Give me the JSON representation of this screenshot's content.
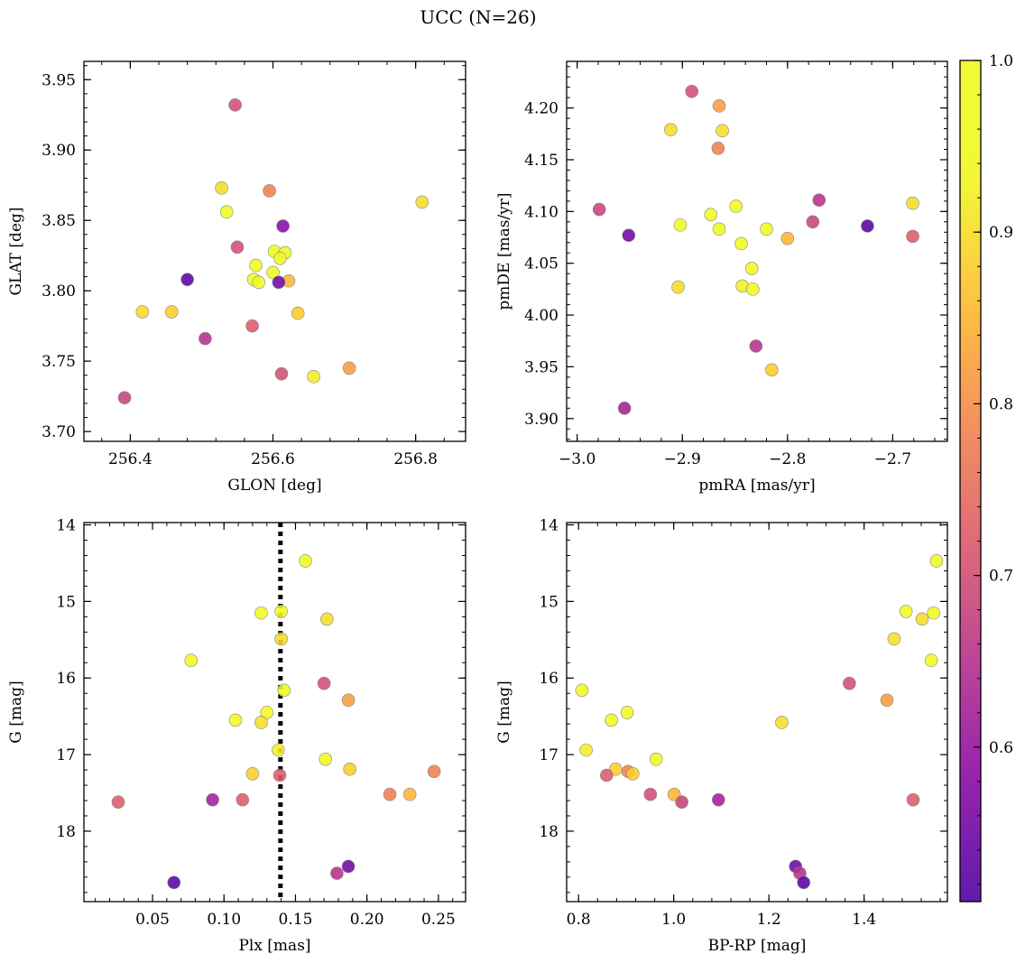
{
  "figure": {
    "title": "UCC (N=26)"
  },
  "colorbar": {
    "colormap": "plasma",
    "range": [
      0.51,
      1.0
    ],
    "ticks": [
      0.6,
      0.7,
      0.8,
      0.9,
      1.0
    ],
    "tick_labels": [
      "0.6",
      "0.7",
      "0.8",
      "0.9",
      "1.0"
    ]
  },
  "chart_data": [
    {
      "type": "scatter",
      "xlabel": "GLON [deg]",
      "ylabel": "GLAT [deg]",
      "xlim": [
        256.335,
        256.87
      ],
      "ylim": [
        3.693,
        3.963
      ],
      "xticks": [
        256.4,
        256.6,
        256.8
      ],
      "xtick_labels": [
        "256.4",
        "256.6",
        "256.8"
      ],
      "yticks": [
        3.7,
        3.75,
        3.8,
        3.85,
        3.9,
        3.95
      ],
      "ytick_labels": [
        "3.70",
        "3.75",
        "3.80",
        "3.85",
        "3.90",
        "3.95"
      ],
      "x_minor_step": 0.04,
      "y_minor_step": 0.01,
      "y_inverted": false,
      "points": [
        {
          "x": 256.547,
          "y": 3.932,
          "p": 0.7
        },
        {
          "x": 256.809,
          "y": 3.863,
          "p": 0.9
        },
        {
          "x": 256.528,
          "y": 3.873,
          "p": 0.9
        },
        {
          "x": 256.595,
          "y": 3.871,
          "p": 0.78
        },
        {
          "x": 256.535,
          "y": 3.856,
          "p": 0.97
        },
        {
          "x": 256.614,
          "y": 3.846,
          "p": 0.58
        },
        {
          "x": 256.55,
          "y": 3.831,
          "p": 0.7
        },
        {
          "x": 256.602,
          "y": 3.828,
          "p": 0.97
        },
        {
          "x": 256.617,
          "y": 3.827,
          "p": 0.97
        },
        {
          "x": 256.61,
          "y": 3.823,
          "p": 0.97
        },
        {
          "x": 256.576,
          "y": 3.818,
          "p": 0.97
        },
        {
          "x": 256.6,
          "y": 3.813,
          "p": 0.97
        },
        {
          "x": 256.573,
          "y": 3.808,
          "p": 0.97
        },
        {
          "x": 256.58,
          "y": 3.806,
          "p": 0.97
        },
        {
          "x": 256.622,
          "y": 3.807,
          "p": 0.85
        },
        {
          "x": 256.608,
          "y": 3.806,
          "p": 0.55
        },
        {
          "x": 256.48,
          "y": 3.808,
          "p": 0.52
        },
        {
          "x": 256.417,
          "y": 3.785,
          "p": 0.9
        },
        {
          "x": 256.458,
          "y": 3.785,
          "p": 0.88
        },
        {
          "x": 256.635,
          "y": 3.784,
          "p": 0.88
        },
        {
          "x": 256.571,
          "y": 3.775,
          "p": 0.72
        },
        {
          "x": 256.505,
          "y": 3.766,
          "p": 0.65
        },
        {
          "x": 256.707,
          "y": 3.745,
          "p": 0.82
        },
        {
          "x": 256.612,
          "y": 3.741,
          "p": 0.7
        },
        {
          "x": 256.657,
          "y": 3.739,
          "p": 0.92
        },
        {
          "x": 256.392,
          "y": 3.724,
          "p": 0.68
        }
      ]
    },
    {
      "type": "scatter",
      "xlabel": "pmRA [mas/yr]",
      "ylabel": "pmDE [mas/yr]",
      "xlim": [
        -3.01,
        -2.648
      ],
      "ylim": [
        3.878,
        4.245
      ],
      "xticks": [
        -3.0,
        -2.9,
        -2.8,
        -2.7
      ],
      "xtick_labels": [
        "−3.0",
        "−2.9",
        "−2.8",
        "−2.7"
      ],
      "yticks": [
        3.9,
        3.95,
        4.0,
        4.05,
        4.1,
        4.15,
        4.2
      ],
      "ytick_labels": [
        "3.90",
        "3.95",
        "4.00",
        "4.05",
        "4.10",
        "4.15",
        "4.20"
      ],
      "x_minor_step": 0.02,
      "y_minor_step": 0.01,
      "y_inverted": false,
      "points": [
        {
          "x": -2.891,
          "y": 4.216,
          "p": 0.7
        },
        {
          "x": -2.865,
          "y": 4.202,
          "p": 0.82
        },
        {
          "x": -2.911,
          "y": 4.179,
          "p": 0.9
        },
        {
          "x": -2.862,
          "y": 4.178,
          "p": 0.9
        },
        {
          "x": -2.866,
          "y": 4.161,
          "p": 0.78
        },
        {
          "x": -2.77,
          "y": 4.111,
          "p": 0.65
        },
        {
          "x": -2.681,
          "y": 4.108,
          "p": 0.9
        },
        {
          "x": -2.849,
          "y": 4.105,
          "p": 0.97
        },
        {
          "x": -2.979,
          "y": 4.102,
          "p": 0.68
        },
        {
          "x": -2.873,
          "y": 4.097,
          "p": 0.97
        },
        {
          "x": -2.776,
          "y": 4.09,
          "p": 0.68
        },
        {
          "x": -2.902,
          "y": 4.087,
          "p": 0.97
        },
        {
          "x": -2.724,
          "y": 4.086,
          "p": 0.52
        },
        {
          "x": -2.865,
          "y": 4.083,
          "p": 0.97
        },
        {
          "x": -2.82,
          "y": 4.083,
          "p": 0.97
        },
        {
          "x": -2.951,
          "y": 4.077,
          "p": 0.55
        },
        {
          "x": -2.681,
          "y": 4.076,
          "p": 0.72
        },
        {
          "x": -2.8,
          "y": 4.074,
          "p": 0.85
        },
        {
          "x": -2.844,
          "y": 4.069,
          "p": 0.97
        },
        {
          "x": -2.834,
          "y": 4.045,
          "p": 0.97
        },
        {
          "x": -2.843,
          "y": 4.028,
          "p": 0.92
        },
        {
          "x": -2.904,
          "y": 4.027,
          "p": 0.9
        },
        {
          "x": -2.833,
          "y": 4.025,
          "p": 0.97
        },
        {
          "x": -2.83,
          "y": 3.97,
          "p": 0.65
        },
        {
          "x": -2.815,
          "y": 3.947,
          "p": 0.88
        },
        {
          "x": -2.955,
          "y": 3.91,
          "p": 0.62
        }
      ]
    },
    {
      "type": "scatter",
      "xlabel": "Plx [mas]",
      "ylabel": "G [mag]",
      "xlim": [
        0.002,
        0.269
      ],
      "ylim": [
        18.92,
        13.97
      ],
      "xticks": [
        0.05,
        0.1,
        0.15,
        0.2,
        0.25
      ],
      "xtick_labels": [
        "0.05",
        "0.10",
        "0.15",
        "0.20",
        "0.25"
      ],
      "yticks": [
        14,
        15,
        16,
        17,
        18
      ],
      "ytick_labels": [
        "14",
        "15",
        "16",
        "17",
        "18"
      ],
      "x_minor_step": 0.01,
      "y_minor_step": 0.2,
      "y_inverted": true,
      "vline": {
        "x": 0.1395,
        "style": "dotted"
      },
      "points": [
        {
          "x": 0.157,
          "y": 14.47,
          "p": 0.97
        },
        {
          "x": 0.126,
          "y": 15.15,
          "p": 0.97
        },
        {
          "x": 0.14,
          "y": 15.13,
          "p": 0.97
        },
        {
          "x": 0.172,
          "y": 15.23,
          "p": 0.9
        },
        {
          "x": 0.14,
          "y": 15.49,
          "p": 0.9
        },
        {
          "x": 0.077,
          "y": 15.77,
          "p": 0.97
        },
        {
          "x": 0.17,
          "y": 16.07,
          "p": 0.7
        },
        {
          "x": 0.142,
          "y": 16.16,
          "p": 0.97
        },
        {
          "x": 0.187,
          "y": 16.29,
          "p": 0.82
        },
        {
          "x": 0.13,
          "y": 16.45,
          "p": 0.97
        },
        {
          "x": 0.108,
          "y": 16.55,
          "p": 0.97
        },
        {
          "x": 0.126,
          "y": 16.58,
          "p": 0.9
        },
        {
          "x": 0.138,
          "y": 16.94,
          "p": 0.92
        },
        {
          "x": 0.171,
          "y": 17.06,
          "p": 0.97
        },
        {
          "x": 0.188,
          "y": 17.19,
          "p": 0.88
        },
        {
          "x": 0.247,
          "y": 17.22,
          "p": 0.78
        },
        {
          "x": 0.12,
          "y": 17.25,
          "p": 0.88
        },
        {
          "x": 0.139,
          "y": 17.27,
          "p": 0.72
        },
        {
          "x": 0.216,
          "y": 17.52,
          "p": 0.78
        },
        {
          "x": 0.23,
          "y": 17.52,
          "p": 0.85
        },
        {
          "x": 0.092,
          "y": 17.59,
          "p": 0.62
        },
        {
          "x": 0.113,
          "y": 17.59,
          "p": 0.72
        },
        {
          "x": 0.026,
          "y": 17.62,
          "p": 0.72
        },
        {
          "x": 0.187,
          "y": 18.46,
          "p": 0.55
        },
        {
          "x": 0.179,
          "y": 18.55,
          "p": 0.65
        },
        {
          "x": 0.065,
          "y": 18.67,
          "p": 0.52
        }
      ]
    },
    {
      "type": "scatter",
      "xlabel": "BP-RP [mag]",
      "ylabel": "G [mag]",
      "xlim": [
        0.775,
        1.575
      ],
      "ylim": [
        18.92,
        13.97
      ],
      "xticks": [
        0.8,
        1.0,
        1.2,
        1.4
      ],
      "xtick_labels": [
        "0.8",
        "1.0",
        "1.2",
        "1.4"
      ],
      "yticks": [
        14,
        15,
        16,
        17,
        18
      ],
      "ytick_labels": [
        "14",
        "15",
        "16",
        "17",
        "18"
      ],
      "x_minor_step": 0.04,
      "y_minor_step": 0.2,
      "y_inverted": true,
      "points": [
        {
          "x": 1.552,
          "y": 14.47,
          "p": 0.97
        },
        {
          "x": 1.488,
          "y": 15.13,
          "p": 0.97
        },
        {
          "x": 1.546,
          "y": 15.15,
          "p": 0.97
        },
        {
          "x": 1.522,
          "y": 15.23,
          "p": 0.9
        },
        {
          "x": 1.463,
          "y": 15.49,
          "p": 0.9
        },
        {
          "x": 1.541,
          "y": 15.77,
          "p": 0.97
        },
        {
          "x": 1.369,
          "y": 16.07,
          "p": 0.7
        },
        {
          "x": 0.807,
          "y": 16.16,
          "p": 0.97
        },
        {
          "x": 1.448,
          "y": 16.29,
          "p": 0.82
        },
        {
          "x": 0.902,
          "y": 16.45,
          "p": 0.97
        },
        {
          "x": 0.869,
          "y": 16.55,
          "p": 0.97
        },
        {
          "x": 1.227,
          "y": 16.58,
          "p": 0.9
        },
        {
          "x": 0.816,
          "y": 16.94,
          "p": 0.92
        },
        {
          "x": 0.963,
          "y": 17.06,
          "p": 0.97
        },
        {
          "x": 0.878,
          "y": 17.19,
          "p": 0.88
        },
        {
          "x": 0.904,
          "y": 17.22,
          "p": 0.78
        },
        {
          "x": 0.914,
          "y": 17.25,
          "p": 0.88
        },
        {
          "x": 0.859,
          "y": 17.27,
          "p": 0.72
        },
        {
          "x": 0.951,
          "y": 17.52,
          "p": 0.7
        },
        {
          "x": 1.001,
          "y": 17.52,
          "p": 0.85
        },
        {
          "x": 1.094,
          "y": 17.59,
          "p": 0.62
        },
        {
          "x": 1.503,
          "y": 17.59,
          "p": 0.72
        },
        {
          "x": 1.017,
          "y": 17.62,
          "p": 0.68
        },
        {
          "x": 1.256,
          "y": 18.46,
          "p": 0.55
        },
        {
          "x": 1.265,
          "y": 18.55,
          "p": 0.65
        },
        {
          "x": 1.273,
          "y": 18.67,
          "p": 0.52
        }
      ]
    }
  ]
}
